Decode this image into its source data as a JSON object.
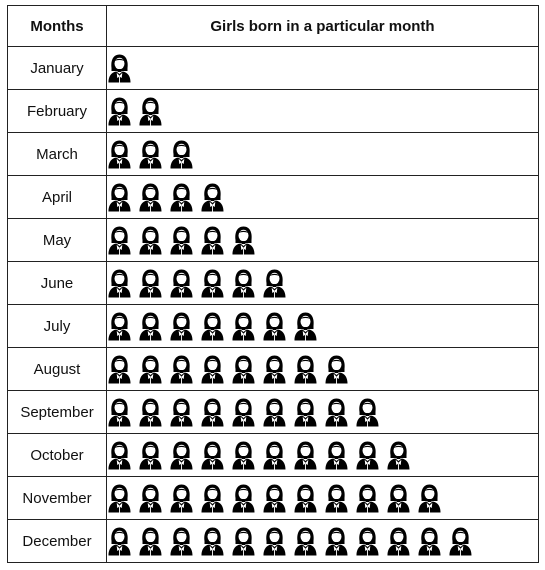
{
  "chart_data": {
    "type": "table",
    "headers": [
      "Months",
      "Girls born in a particular month"
    ],
    "icon": "girl-icon",
    "categories": [
      "January",
      "February",
      "March",
      "April",
      "May",
      "June",
      "July",
      "August",
      "September",
      "October",
      "November",
      "December"
    ],
    "values": [
      1,
      2,
      3,
      4,
      5,
      6,
      7,
      8,
      9,
      10,
      11,
      12
    ]
  }
}
